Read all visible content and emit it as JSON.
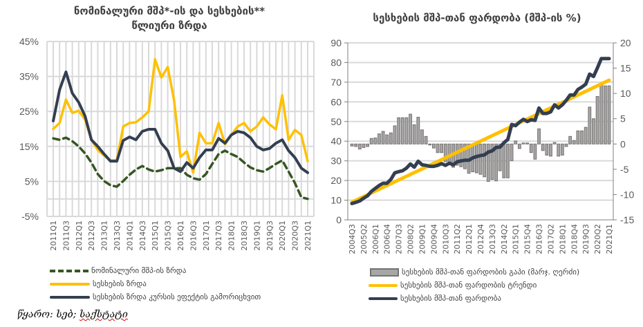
{
  "source": {
    "label": "წყარო: სებ;",
    "underlined": "საქსტატი"
  },
  "chart_data": [
    {
      "type": "line",
      "title": "ნომინალური მშპ*-ის და სესხების** წლიური ზრდა",
      "title_lines": [
        "ნომინალური მშპ*-ის და სესხების**",
        "წლიური ზრდა"
      ],
      "xlabel": "",
      "ylabel": "",
      "ylim": [
        -5,
        45
      ],
      "y_ticks": [
        "45%",
        "35%",
        "25%",
        "15%",
        "5%",
        "-5%"
      ],
      "y_tick_values": [
        45,
        35,
        25,
        15,
        5,
        -5
      ],
      "grid": true,
      "legend_position": "bottom",
      "x": [
        "2011Q1",
        "2011Q2",
        "2011Q3",
        "2011Q4",
        "2012Q1",
        "2012Q2",
        "2012Q3",
        "2012Q4",
        "2013Q1",
        "2013Q2",
        "2013Q3",
        "2013Q4",
        "2014Q1",
        "2014Q2",
        "2014Q3",
        "2014Q4",
        "2015Q1",
        "2015Q2",
        "2015Q3",
        "2015Q4",
        "2016Q1",
        "2016Q2",
        "2016Q3",
        "2016Q4",
        "2017Q1",
        "2017Q2",
        "2017Q3",
        "2017Q4",
        "2018Q1",
        "2018Q2",
        "2018Q3",
        "2018Q4",
        "2019Q1",
        "2019Q2",
        "2019Q3",
        "2019Q4",
        "2020Q1",
        "2020Q2",
        "2020Q3",
        "2020Q4",
        "2021Q1"
      ],
      "x_tick_labels": [
        "2011Q1",
        "2011Q3",
        "2012Q1",
        "2012Q3",
        "2013Q1",
        "2013Q3",
        "2014Q1",
        "2014Q3",
        "2015Q1",
        "2015Q3",
        "2016Q1",
        "2016Q3",
        "2017Q1",
        "2017Q3",
        "2018Q1",
        "2018Q3",
        "2019Q1",
        "2019Q3",
        "2020Q1",
        "2020Q3",
        "2021Q1"
      ],
      "series": [
        {
          "name": "ნომინალური მშპ-ის ზრდა",
          "color": "#375623",
          "style": "dashed",
          "values": [
            17.3,
            16.9,
            17.5,
            16.5,
            15.0,
            13.0,
            10.4,
            7.1,
            5.1,
            3.9,
            3.5,
            5.1,
            6.9,
            8.4,
            9.4,
            8.4,
            7.8,
            8.2,
            8.8,
            8.8,
            8.8,
            6.9,
            5.9,
            5.5,
            7.1,
            10.0,
            12.8,
            13.8,
            12.8,
            12.0,
            10.4,
            9.0,
            8.2,
            7.8,
            8.8,
            10.0,
            11.0,
            7.8,
            4.5,
            0.5,
            0.0
          ]
        },
        {
          "name": "სესხების ზრდა",
          "color": "#FFC000",
          "style": "solid",
          "values": [
            20.0,
            21.7,
            28.4,
            24.6,
            25.2,
            22.7,
            16.9,
            14.0,
            12.4,
            11.0,
            11.0,
            20.7,
            21.7,
            21.9,
            23.3,
            25.0,
            39.9,
            34.7,
            37.7,
            28.2,
            12.0,
            13.6,
            7.5,
            18.9,
            15.9,
            15.9,
            21.7,
            15.6,
            18.3,
            20.7,
            21.7,
            19.3,
            20.7,
            23.3,
            21.3,
            19.9,
            29.6,
            16.9,
            19.7,
            18.3,
            10.8
          ]
        },
        {
          "name": "სესხების ზრდა კურსის ეფექტის გამორიცხვით",
          "color": "#333F50",
          "style": "solid",
          "values": [
            22.3,
            31.2,
            36.3,
            30.2,
            27.6,
            23.7,
            16.9,
            15.0,
            12.8,
            10.8,
            10.8,
            16.7,
            17.7,
            16.9,
            19.3,
            19.9,
            19.9,
            15.9,
            13.8,
            8.8,
            7.8,
            10.4,
            8.8,
            11.8,
            14.0,
            14.0,
            17.3,
            15.9,
            18.3,
            19.3,
            18.9,
            17.5,
            15.0,
            14.0,
            14.4,
            15.9,
            16.9,
            13.8,
            11.8,
            8.8,
            7.5
          ]
        }
      ]
    },
    {
      "type": "bar+line",
      "title": "სესხების მშპ-თან ფარდობა (მშპ-ის %)",
      "xlabel": "",
      "ylabel": "",
      "ylim": [
        0,
        90
      ],
      "y_ticks": [
        "90",
        "80",
        "70",
        "60",
        "50",
        "40",
        "30",
        "20",
        "10",
        "0"
      ],
      "y_tick_values": [
        90,
        80,
        70,
        60,
        50,
        40,
        30,
        20,
        10,
        0
      ],
      "y2lim": [
        -15,
        20
      ],
      "y2_ticks": [
        "20",
        "15",
        "10",
        "5",
        "0",
        "-5",
        "-10",
        "-15"
      ],
      "y2_tick_values": [
        20,
        15,
        10,
        5,
        0,
        -5,
        -10,
        -15
      ],
      "grid": true,
      "legend_position": "bottom",
      "x_start": "2004Q3",
      "x_end": "2021Q1",
      "x_tick_labels": [
        "2004Q3",
        "2005Q2",
        "2006Q1",
        "2006Q4",
        "2007Q3",
        "2008Q2",
        "2009Q1",
        "2009Q4",
        "2010Q3",
        "2011Q2",
        "2012Q1",
        "2012Q4",
        "2013Q3",
        "2014Q2",
        "2015Q1",
        "2015Q4",
        "2016Q3",
        "2017Q2",
        "2018Q1",
        "2018Q4",
        "2019Q3",
        "2020Q2",
        "2021Q1"
      ],
      "series": [
        {
          "name": "სესხების მშპ-თან ფარდობის გაპი (მარჯ. ღერძი)",
          "type": "bar",
          "axis": "right",
          "color": "#767171",
          "values": [
            -0.4,
            -0.5,
            -1.0,
            -0.7,
            -0.5,
            1.1,
            1.2,
            2.0,
            2.5,
            1.8,
            2.2,
            3.6,
            5.2,
            5.2,
            5.2,
            5.9,
            3.8,
            5.3,
            2.8,
            1.5,
            -0.2,
            -0.8,
            -1.7,
            -1.7,
            -3.5,
            -3.7,
            -4.6,
            -4.2,
            -4.5,
            -4.9,
            -5.8,
            -5.5,
            -5.7,
            -6.0,
            -6.5,
            -7.4,
            -7.0,
            -7.3,
            -5.3,
            -6.7,
            -6.7,
            -3.3,
            0.6,
            -0.9,
            0.2,
            0.2,
            -1.7,
            -3.0,
            3.0,
            -1.3,
            -2.2,
            -2.4,
            0.3,
            -2.4,
            -2.2,
            -0.5,
            1.5,
            0.7,
            2.6,
            2.6,
            3.3,
            7.3,
            5.0,
            9.4,
            12.0,
            11.5,
            11.5
          ]
        },
        {
          "name": "სესხების მშპ-თან ფარდობის ტრენდი",
          "type": "line",
          "axis": "left",
          "color": "#FFC000",
          "start": 9.0,
          "end": 71.0
        },
        {
          "name": "სესხების მშპ-თან ფარდობა",
          "type": "line",
          "axis": "left",
          "color": "#333F50",
          "values": [
            8.3,
            8.9,
            9.6,
            11.0,
            12.2,
            14.5,
            16.0,
            17.5,
            18.6,
            18.6,
            20.6,
            23.9,
            24.5,
            25.0,
            26.3,
            28.4,
            26.8,
            29.8,
            28.0,
            27.7,
            27.2,
            27.2,
            27.7,
            28.6,
            27.7,
            28.8,
            28.0,
            29.5,
            30.0,
            30.3,
            30.3,
            31.5,
            32.2,
            32.7,
            33.0,
            34.5,
            35.1,
            36.8,
            37.0,
            39.2,
            40.9,
            48.5,
            47.9,
            49.7,
            51.1,
            50.0,
            50.9,
            50.6,
            56.9,
            54.1,
            54.1,
            54.9,
            58.5,
            56.9,
            58.5,
            60.8,
            63.5,
            63.5,
            66.3,
            67.5,
            69.0,
            74.1,
            72.9,
            77.3,
            82.0,
            82.0,
            82.0
          ]
        }
      ]
    }
  ]
}
